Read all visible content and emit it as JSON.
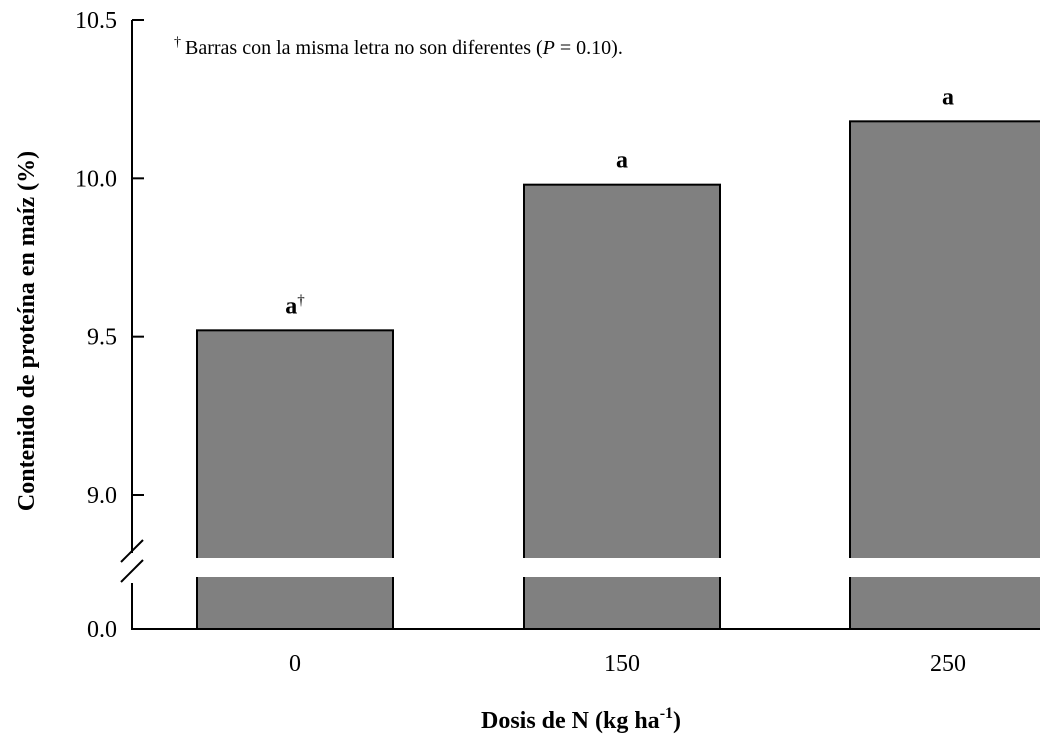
{
  "chart_data": {
    "type": "bar",
    "categories": [
      "0",
      "150",
      "250"
    ],
    "values": [
      9.52,
      9.98,
      10.18
    ],
    "bar_labels": [
      "a",
      "a",
      "a"
    ],
    "bar_label_mark": [
      "†",
      "",
      ""
    ],
    "bar_color": "#808080",
    "xlabel": {
      "text": "Dosis de N (kg ha",
      "sup": "-1",
      "tail": ")"
    },
    "ylabel": "Contenido de proteína en maíz (%)",
    "y_ticks": [
      "0.0",
      "9.0",
      "9.5",
      "10.0",
      "10.5"
    ],
    "ylim": [
      8.8,
      10.5
    ],
    "axis_break": {
      "from": 0.0,
      "to": 8.8
    },
    "footnote": {
      "mark": "†",
      "text_before": "Barras con la misma letra no son diferentes (",
      "italic": "P",
      "text_after": " = 0.10)."
    }
  }
}
